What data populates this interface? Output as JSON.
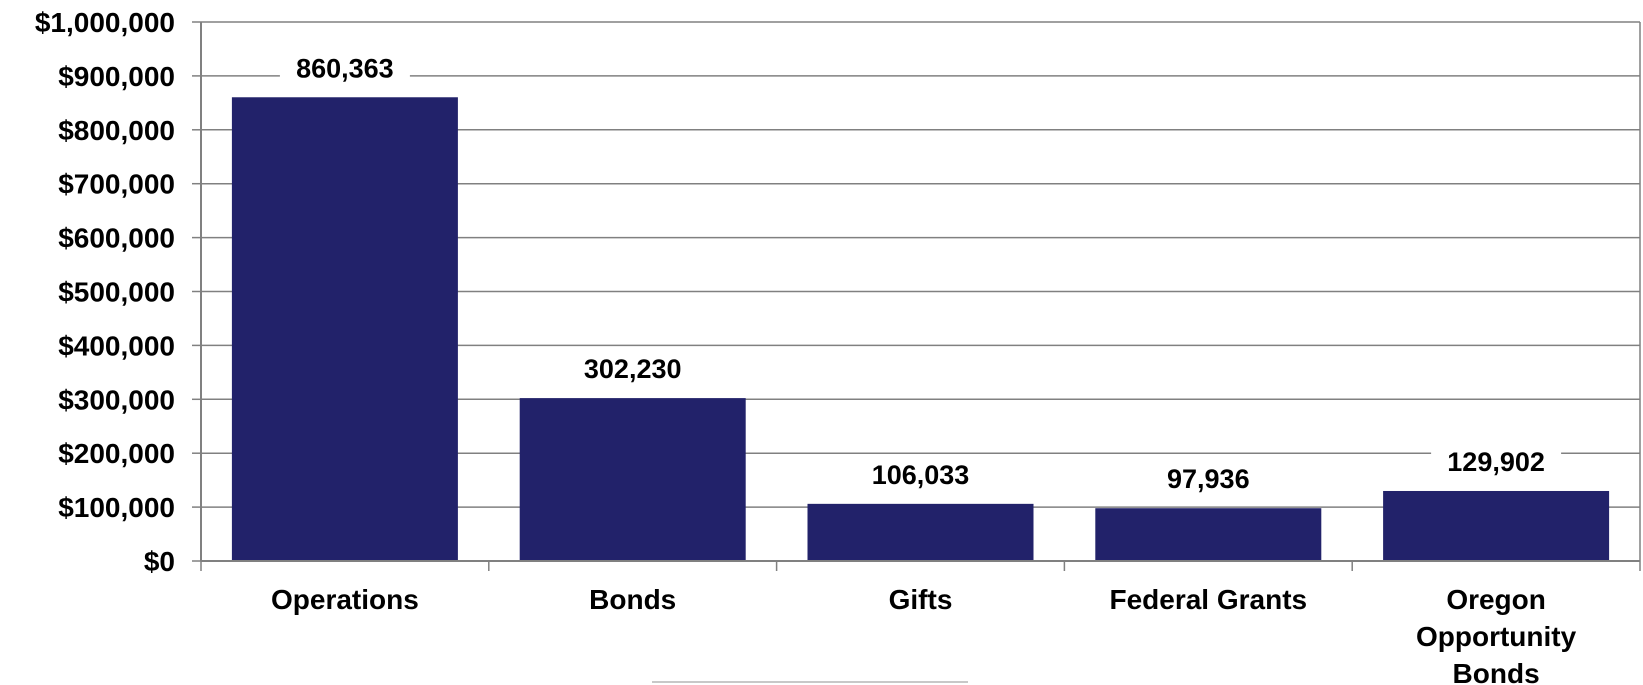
{
  "chart_data": {
    "type": "bar",
    "categories": [
      [
        "Operations"
      ],
      [
        "Bonds"
      ],
      [
        "Gifts"
      ],
      [
        "Federal Grants"
      ],
      [
        "Oregon",
        "Opportunity",
        "Bonds"
      ]
    ],
    "values": [
      860363,
      302230,
      106033,
      97936,
      129902
    ],
    "data_labels": [
      "860,363",
      "302,230",
      "106,033",
      "97,936",
      "129,902"
    ],
    "y_ticks": [
      0,
      100000,
      200000,
      300000,
      400000,
      500000,
      600000,
      700000,
      800000,
      900000,
      1000000
    ],
    "y_tick_labels": [
      "$0",
      "$100,000",
      "$200,000",
      "$300,000",
      "$400,000",
      "$500,000",
      "$600,000",
      "$700,000",
      "$800,000",
      "$900,000",
      "$1,000,000"
    ],
    "ylim": [
      0,
      1000000
    ],
    "grid": true,
    "bar_color": "#22226a",
    "grid_color": "#808080",
    "title": "",
    "xlabel": "",
    "ylabel": ""
  }
}
